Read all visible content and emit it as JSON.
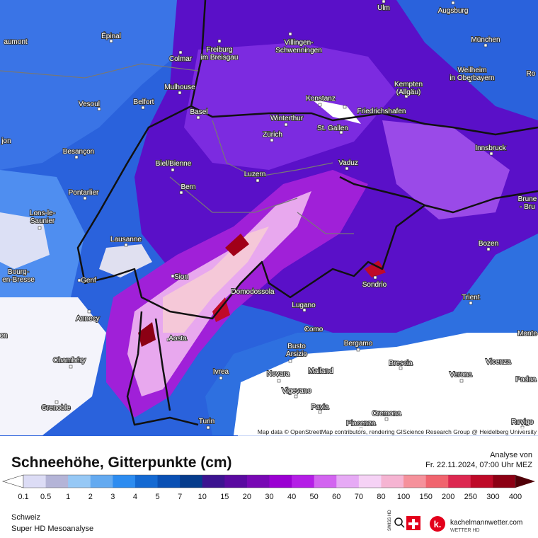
{
  "map": {
    "cities": [
      {
        "lines": [
          "Ulm"
        ]
      },
      {
        "lines": [
          "Augsburg"
        ]
      },
      {
        "lines": [
          "Épinal"
        ]
      },
      {
        "lines": [
          "aumont"
        ]
      },
      {
        "lines": [
          "München"
        ]
      },
      {
        "lines": [
          "Colmar"
        ]
      },
      {
        "lines": [
          "Freiburg",
          "im Breisgau"
        ]
      },
      {
        "lines": [
          "Villingen-",
          "Schwenningen"
        ]
      },
      {
        "lines": [
          "Kempten",
          "(Allgäu)"
        ]
      },
      {
        "lines": [
          "Weilheim",
          "in Oberbayern"
        ]
      },
      {
        "lines": [
          "Ro"
        ]
      },
      {
        "lines": [
          "Mulhouse"
        ]
      },
      {
        "lines": [
          "Konstanz"
        ]
      },
      {
        "lines": [
          "Vesoul"
        ]
      },
      {
        "lines": [
          "Belfort"
        ]
      },
      {
        "lines": [
          "Basel"
        ]
      },
      {
        "lines": [
          "Friedrichshafen"
        ]
      },
      {
        "lines": [
          "Winterthur"
        ]
      },
      {
        "lines": [
          "St. Gallen"
        ]
      },
      {
        "lines": [
          "Zürich"
        ]
      },
      {
        "lines": [
          "jon"
        ]
      },
      {
        "lines": [
          "Besançon"
        ]
      },
      {
        "lines": [
          "Innsbruck"
        ]
      },
      {
        "lines": [
          "Biel/Bienne"
        ]
      },
      {
        "lines": [
          "Vaduz"
        ]
      },
      {
        "lines": [
          "Luzern"
        ]
      },
      {
        "lines": [
          "Bern"
        ]
      },
      {
        "lines": [
          "Pontarlier"
        ]
      },
      {
        "lines": [
          "Brune",
          "- Bru"
        ]
      },
      {
        "lines": [
          "Lons-le-",
          "Saunier"
        ]
      },
      {
        "lines": [
          "Lausanne"
        ]
      },
      {
        "lines": [
          "Bozen"
        ]
      },
      {
        "lines": [
          "Bourg-",
          "en-Bresse"
        ]
      },
      {
        "lines": [
          "Genf"
        ]
      },
      {
        "lines": [
          "Sion"
        ]
      },
      {
        "lines": [
          "Sondrio"
        ]
      },
      {
        "lines": [
          "Domodossola"
        ]
      },
      {
        "lines": [
          "Trient"
        ]
      },
      {
        "lines": [
          "Lugano"
        ]
      },
      {
        "lines": [
          "Annecy"
        ]
      },
      {
        "lines": [
          "Como"
        ]
      },
      {
        "lines": [
          "Monte"
        ]
      },
      {
        "lines": [
          "on"
        ]
      },
      {
        "lines": [
          "Aosta"
        ]
      },
      {
        "lines": [
          "Bergamo"
        ]
      },
      {
        "lines": [
          "Busto",
          "Arsizio"
        ]
      },
      {
        "lines": [
          "Chambéry"
        ]
      },
      {
        "lines": [
          "Brescia"
        ]
      },
      {
        "lines": [
          "Vicenza"
        ]
      },
      {
        "lines": [
          "Ivrea"
        ]
      },
      {
        "lines": [
          "Novara"
        ]
      },
      {
        "lines": [
          "Mailand"
        ]
      },
      {
        "lines": [
          "Verona"
        ]
      },
      {
        "lines": [
          "Padua"
        ]
      },
      {
        "lines": [
          "Vigevano"
        ]
      },
      {
        "lines": [
          "Grenoble"
        ]
      },
      {
        "lines": [
          "Pavia"
        ]
      },
      {
        "lines": [
          "Cremona"
        ]
      },
      {
        "lines": [
          "Turin"
        ]
      },
      {
        "lines": [
          "Piacenza"
        ]
      },
      {
        "lines": [
          "Rovigo"
        ]
      }
    ],
    "attribution": "Map data © OpenStreetMap contributors, rendering GIScience Research Group @ Heidelberg University"
  },
  "header": {
    "title": "Schneehöhe, Gitterpunkte (cm)",
    "analysis_label": "Analyse von",
    "analysis_time": "Fr. 22.11.2024, 07:00 Uhr MEZ"
  },
  "legend": {
    "ticks": [
      0.1,
      0.5,
      1,
      2,
      3,
      4,
      5,
      7,
      10,
      15,
      20,
      30,
      40,
      50,
      60,
      70,
      80,
      100,
      150,
      200,
      250,
      300,
      400
    ],
    "colors": [
      "#dcdcf5",
      "#b4b4d7",
      "#96c8f5",
      "#64aaf0",
      "#2d8cf0",
      "#1469d2",
      "#0a50b4",
      "#063c8c",
      "#3c1490",
      "#5a0aa0",
      "#7808b4",
      "#9a00d2",
      "#b41ee6",
      "#d264f0",
      "#e6aaf5",
      "#f5d2f5",
      "#f5b4d2",
      "#f5919b",
      "#f0646e",
      "#dc2850",
      "#be0a28",
      "#8c0014"
    ],
    "low_color": "#ffffff",
    "high_color": "#500008"
  },
  "footer": {
    "region": "Schweiz",
    "product": "Super HD Mesoanalyse",
    "badge": "SWISS HD",
    "brand": "kachelmannwetter.com",
    "brand_sub": "WETTER HD",
    "logo": "k."
  }
}
